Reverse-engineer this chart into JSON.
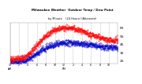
{
  "title_line1": "Milwaukee Weather  Outdoor Temp / Dew Point",
  "title_line2": "by Minute    (24 Hours) (Alternate)",
  "bg_color": "#ffffff",
  "plot_bg_color": "#ffffff",
  "temp_color": "#ff0000",
  "dew_color": "#0000cc",
  "grid_color": "#aaaaaa",
  "text_color": "#000000",
  "ylim": [
    22,
    72
  ],
  "yticks": [
    25,
    35,
    45,
    55,
    65
  ],
  "num_points": 1440,
  "time_labels": [
    "12\nAM",
    "2",
    "4",
    "6",
    "8",
    "10",
    "12\nPM",
    "2",
    "4",
    "6",
    "8",
    "10",
    ""
  ],
  "time_positions": [
    0,
    2,
    4,
    6,
    8,
    10,
    12,
    14,
    16,
    18,
    20,
    22,
    24
  ]
}
